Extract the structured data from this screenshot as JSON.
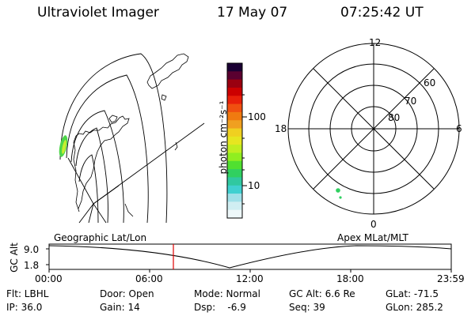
{
  "header": {
    "title": "Ultraviolet Imager",
    "date": "17 May 07",
    "time": "07:25:42 UT"
  },
  "colorbar": {
    "unit_label": "photon cm⁻²s⁻¹",
    "ticks": [
      "100",
      "10"
    ],
    "colors": [
      "#1a0033",
      "#5a0030",
      "#9a0010",
      "#cc0000",
      "#e8200a",
      "#f05010",
      "#f07a10",
      "#f0a020",
      "#f0d020",
      "#e6e620",
      "#c0ee20",
      "#90ee20",
      "#50e030",
      "#30d060",
      "#30c8a0",
      "#40d0d0",
      "#a0e0e8",
      "#d0eef2",
      "#eef8fa"
    ]
  },
  "geo_map": {
    "label": "Geographic Lat/Lon"
  },
  "polar_plot": {
    "label": "Apex MLat/MLT",
    "mlt_labels": {
      "top": "12",
      "left": "18",
      "right": "6",
      "bottom": "0"
    },
    "lat_labels": [
      "60",
      "70",
      "80"
    ]
  },
  "timeline": {
    "ylabel": "GC Alt",
    "y_ticks": [
      "9.0",
      "1.8"
    ],
    "x_ticks": [
      "00:00",
      "06:00",
      "12:00",
      "18:00",
      "23:59"
    ],
    "marker_color": "#e00000"
  },
  "info": {
    "flt": "Flt: LBHL",
    "ip": "IP: 36.0",
    "door": "Door: Open",
    "gain": "Gain: 14",
    "mode": "Mode: Normal",
    "dsp": "Dsp:    -6.9",
    "gc_alt": "GC Alt: 6.6 Re",
    "seq": "Seq: 39",
    "glat": "GLat: -71.5",
    "glon": "GLon: 285.2"
  }
}
